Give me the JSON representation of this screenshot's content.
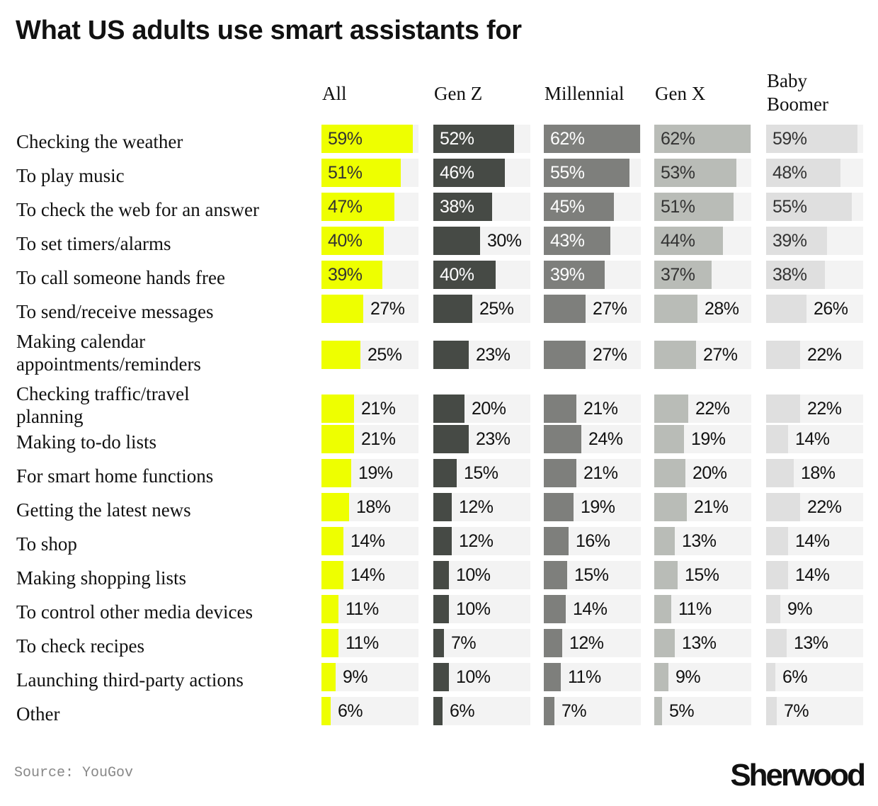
{
  "chart_data": {
    "type": "bar",
    "title": "What US adults use smart assistants for",
    "source": "Source: YouGov",
    "brand": "Sherwood",
    "xlim": [
      0,
      62
    ],
    "categories": [
      "Checking the weather",
      "To play music",
      "To check the web for an answer",
      "To set timers/alarms",
      "To call someone hands free",
      "To send/receive messages",
      "Making calendar appointments/reminders",
      "Checking traffic/travel planning",
      "Making to-do lists",
      "For smart home functions",
      "Getting the latest news",
      "To shop",
      "Making shopping lists",
      "To control other media devices",
      "To check recipes",
      "Launching third-party actions",
      "Other"
    ],
    "category_lines": [
      [
        "Checking the weather"
      ],
      [
        "To play music"
      ],
      [
        "To check the web for an answer"
      ],
      [
        "To set timers/alarms"
      ],
      [
        "To call someone hands free"
      ],
      [
        "To send/receive messages"
      ],
      [
        "Making calendar",
        "appointments/reminders"
      ],
      [
        "Checking traffic/travel",
        "planning"
      ],
      [
        "Making to-do lists"
      ],
      [
        "For smart home functions"
      ],
      [
        "Getting the latest news"
      ],
      [
        "To shop"
      ],
      [
        "Making shopping lists"
      ],
      [
        "To control other media devices"
      ],
      [
        "To check recipes"
      ],
      [
        "Launching third-party actions"
      ],
      [
        "Other"
      ]
    ],
    "series": [
      {
        "name": "All",
        "name_lines": [
          "All"
        ],
        "color": "#eeff00",
        "text_color": "#333333",
        "values": [
          59,
          51,
          47,
          40,
          39,
          27,
          25,
          21,
          21,
          19,
          18,
          14,
          14,
          11,
          11,
          9,
          6
        ]
      },
      {
        "name": "Gen Z",
        "name_lines": [
          "Gen Z"
        ],
        "color": "#464a45",
        "text_color": "#ffffff",
        "values": [
          52,
          46,
          38,
          30,
          40,
          25,
          23,
          20,
          23,
          15,
          12,
          12,
          10,
          10,
          7,
          10,
          6
        ]
      },
      {
        "name": "Millennial",
        "name_lines": [
          "Millennial"
        ],
        "color": "#7e7f7c",
        "text_color": "#ffffff",
        "values": [
          62,
          55,
          45,
          43,
          39,
          27,
          27,
          21,
          24,
          21,
          19,
          16,
          15,
          14,
          12,
          11,
          7
        ]
      },
      {
        "name": "Gen X",
        "name_lines": [
          "Gen X"
        ],
        "color": "#b9bcb7",
        "text_color": "#333333",
        "values": [
          62,
          53,
          51,
          44,
          37,
          28,
          27,
          22,
          19,
          20,
          21,
          13,
          15,
          11,
          13,
          9,
          5
        ]
      },
      {
        "name": "Baby Boomer",
        "name_lines": [
          "Baby",
          "Boomer"
        ],
        "color": "#dfdfdf",
        "text_color": "#333333",
        "values": [
          59,
          48,
          55,
          39,
          38,
          26,
          22,
          22,
          14,
          18,
          22,
          14,
          14,
          9,
          13,
          6,
          7
        ]
      }
    ],
    "value_suffix": "%"
  }
}
